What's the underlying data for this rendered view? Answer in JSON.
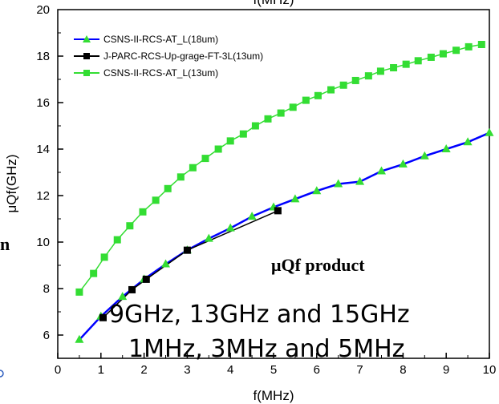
{
  "chart_data": {
    "type": "line",
    "xlabel": "f(MHz)",
    "top_label": "f(MHz)",
    "ylabel": "μQf(GHz)",
    "xlim": [
      0,
      10
    ],
    "ylim": [
      5,
      20
    ],
    "xticks": [
      0,
      1,
      2,
      3,
      4,
      5,
      6,
      7,
      8,
      9,
      10
    ],
    "yticks": [
      6,
      8,
      10,
      12,
      14,
      16,
      18
    ],
    "y_top_fragment": "20",
    "grid": false,
    "legend_position": "top-left",
    "series": [
      {
        "name": "CSNS-II-RCS-AT_L(18um)",
        "color": "#0000ff",
        "marker": "triangle",
        "marker_color": "#33dd33",
        "x": [
          0.5,
          1.0,
          1.5,
          2.0,
          2.5,
          3.0,
          3.5,
          4.0,
          4.5,
          5.0,
          5.5,
          6.0,
          6.5,
          7.0,
          7.5,
          8.0,
          8.5,
          9.0,
          9.5,
          10.0
        ],
        "y": [
          5.8,
          6.8,
          7.65,
          8.4,
          9.05,
          9.65,
          10.15,
          10.6,
          11.1,
          11.5,
          11.85,
          12.2,
          12.5,
          12.6,
          13.05,
          13.35,
          13.7,
          14.0,
          14.3,
          14.7
        ]
      },
      {
        "name": "J-PARC-RCS-Up-grage-FT-3L(13um)",
        "color": "#000000",
        "marker": "square",
        "marker_color": "#000000",
        "x": [
          1.05,
          1.72,
          2.05,
          3.0,
          5.1
        ],
        "y": [
          6.75,
          7.95,
          8.4,
          9.65,
          11.35
        ]
      },
      {
        "name": "CSNS-II-RCS-AT_L(13um)",
        "color": "#33dd33",
        "marker": "square",
        "marker_color": "#33dd33",
        "x": [
          0.5,
          0.83,
          1.08,
          1.38,
          1.67,
          1.97,
          2.27,
          2.55,
          2.85,
          3.13,
          3.42,
          3.72,
          4.0,
          4.3,
          4.58,
          4.87,
          5.17,
          5.45,
          5.75,
          6.03,
          6.33,
          6.62,
          6.9,
          7.2,
          7.48,
          7.78,
          8.07,
          8.35,
          8.65,
          8.93,
          9.23,
          9.52,
          9.82
        ],
        "y": [
          7.85,
          8.65,
          9.35,
          10.1,
          10.7,
          11.3,
          11.8,
          12.3,
          12.8,
          13.2,
          13.6,
          14.0,
          14.35,
          14.65,
          15.0,
          15.3,
          15.55,
          15.8,
          16.1,
          16.3,
          16.55,
          16.75,
          16.95,
          17.15,
          17.35,
          17.5,
          17.65,
          17.8,
          17.95,
          18.1,
          18.25,
          18.4,
          18.5
        ]
      }
    ],
    "annotations": {
      "product_label": "μQf product",
      "ghz_line": "9GHz, 13GHz and 15GHz",
      "mhz_line": "1MHz, 3MHz and 5MHz",
      "left_edge_char": "n"
    }
  }
}
